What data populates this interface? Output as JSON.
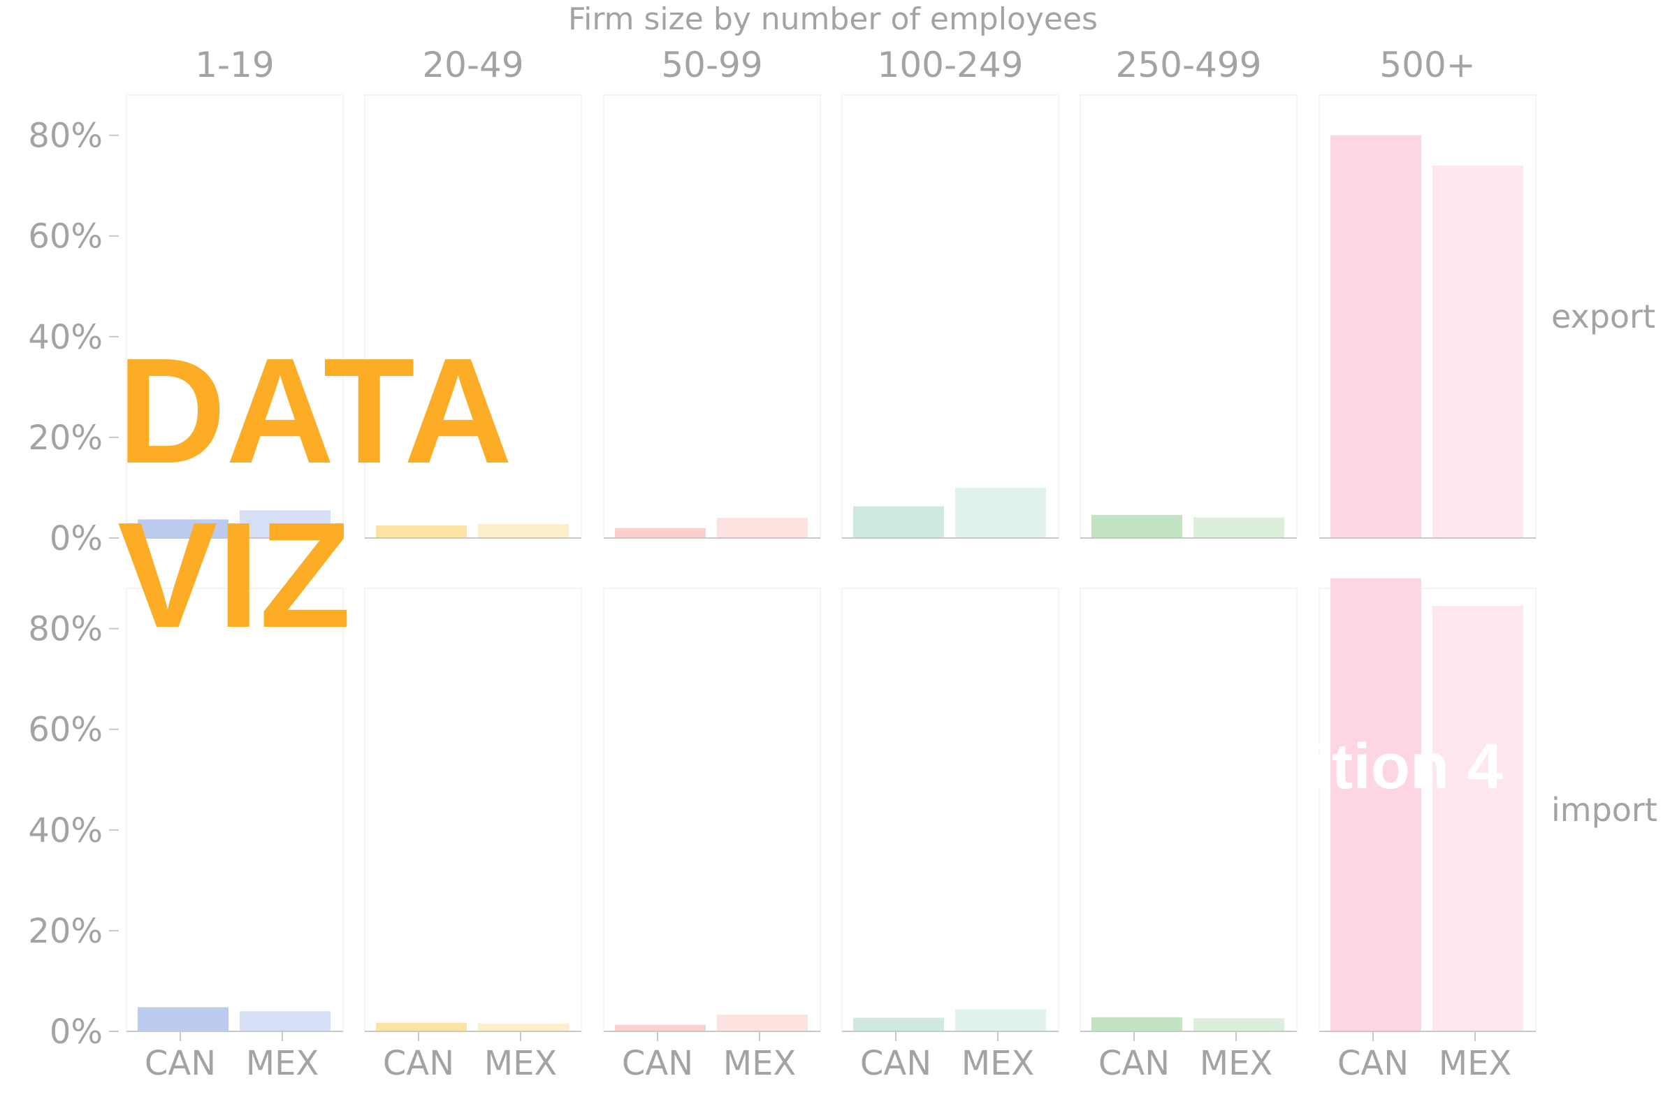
{
  "chart_data": {
    "type": "bar",
    "title": "Firm size by number of employees",
    "facets": [
      "1-19",
      "20-49",
      "50-99",
      "100-249",
      "250-499",
      "500+"
    ],
    "rows": [
      "export",
      "import"
    ],
    "categories": [
      "CAN",
      "MEX"
    ],
    "yticks": [
      "0%",
      "20%",
      "40%",
      "60%",
      "80%"
    ],
    "ylim": [
      0,
      88
    ],
    "grid": false,
    "colors": {
      "1-19": [
        "#bccbf0",
        "#d6dff6"
      ],
      "20-49": [
        "#fbe3a5",
        "#fdefca"
      ],
      "50-99": [
        "#fbd0cc",
        "#fde3e0"
      ],
      "100-249": [
        "#cde9e1",
        "#e1f2ec"
      ],
      "250-499": [
        "#c3e4c2",
        "#dcefdb"
      ],
      "500+": [
        "#fdd5e4",
        "#fee6ee"
      ]
    },
    "values": {
      "export": {
        "1-19": [
          3.7,
          5.5
        ],
        "20-49": [
          2.5,
          2.8
        ],
        "50-99": [
          2.0,
          4.0
        ],
        "100-249": [
          6.3,
          10.0
        ],
        "250-499": [
          4.6,
          4.1
        ],
        "500+": [
          80.0,
          74.0
        ]
      },
      "import": {
        "1-19": [
          4.8,
          4.0
        ],
        "20-49": [
          1.7,
          1.6
        ],
        "50-99": [
          1.3,
          3.3
        ],
        "100-249": [
          2.7,
          4.4
        ],
        "250-499": [
          2.8,
          2.6
        ],
        "500+": [
          90.0,
          84.5
        ]
      }
    }
  },
  "overlay": {
    "line1": "DATA",
    "line2": "VIZ",
    "fragment": "ition 4"
  }
}
